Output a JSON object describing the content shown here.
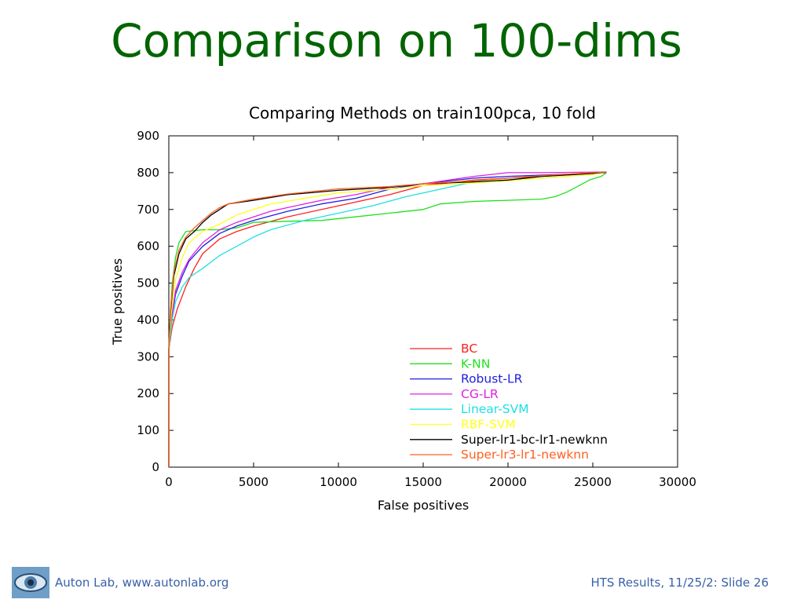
{
  "slide": {
    "title": "Comparison on 100-dims",
    "footer_left": "Auton Lab, www.autonlab.org",
    "footer_right": "HTS Results, 11/25/2: Slide 26",
    "logo_icon": "eye-logo-icon",
    "title_color": "#006400",
    "footer_color": "#3a5fa8"
  },
  "chart_data": {
    "type": "line",
    "title": "Comparing Methods on train100pca, 10 fold",
    "xlabel": "False positives",
    "ylabel": "True positives",
    "xlim": [
      0,
      30000
    ],
    "ylim": [
      0,
      900
    ],
    "xticks": [
      0,
      5000,
      10000,
      15000,
      20000,
      25000,
      30000
    ],
    "yticks": [
      0,
      100,
      200,
      300,
      400,
      500,
      600,
      700,
      800,
      900
    ],
    "legend_position": "bottom-right",
    "series": [
      {
        "name": "BC",
        "color": "#ff2020",
        "points": [
          [
            0,
            0
          ],
          [
            0,
            320
          ],
          [
            200,
            380
          ],
          [
            500,
            430
          ],
          [
            1000,
            490
          ],
          [
            1500,
            540
          ],
          [
            2000,
            580
          ],
          [
            3000,
            620
          ],
          [
            4000,
            640
          ],
          [
            5000,
            655
          ],
          [
            7000,
            680
          ],
          [
            10000,
            710
          ],
          [
            13000,
            740
          ],
          [
            15000,
            765
          ],
          [
            18000,
            780
          ],
          [
            20000,
            785
          ],
          [
            22000,
            790
          ],
          [
            24000,
            795
          ],
          [
            25800,
            800
          ]
        ]
      },
      {
        "name": "K-NN",
        "color": "#20e020",
        "points": [
          [
            0,
            0
          ],
          [
            0,
            330
          ],
          [
            100,
            420
          ],
          [
            200,
            500
          ],
          [
            400,
            570
          ],
          [
            600,
            610
          ],
          [
            1000,
            640
          ],
          [
            2000,
            645
          ],
          [
            3000,
            645
          ],
          [
            4000,
            650
          ],
          [
            5000,
            665
          ],
          [
            7000,
            668
          ],
          [
            9000,
            670
          ],
          [
            11000,
            680
          ],
          [
            13000,
            690
          ],
          [
            15000,
            700
          ],
          [
            16000,
            715
          ],
          [
            18000,
            722
          ],
          [
            20000,
            725
          ],
          [
            22000,
            728
          ],
          [
            22800,
            735
          ],
          [
            23500,
            748
          ],
          [
            24200,
            765
          ],
          [
            24800,
            780
          ],
          [
            25500,
            790
          ],
          [
            25800,
            800
          ]
        ]
      },
      {
        "name": "Robust-LR",
        "color": "#2020e0",
        "points": [
          [
            0,
            0
          ],
          [
            0,
            320
          ],
          [
            150,
            400
          ],
          [
            400,
            470
          ],
          [
            800,
            520
          ],
          [
            1200,
            560
          ],
          [
            2000,
            600
          ],
          [
            3000,
            635
          ],
          [
            4000,
            655
          ],
          [
            5000,
            670
          ],
          [
            7000,
            695
          ],
          [
            9000,
            715
          ],
          [
            11000,
            730
          ],
          [
            13000,
            755
          ],
          [
            15000,
            770
          ],
          [
            18000,
            785
          ],
          [
            20000,
            790
          ],
          [
            23000,
            795
          ],
          [
            25800,
            800
          ]
        ]
      },
      {
        "name": "CG-LR",
        "color": "#e020e0",
        "points": [
          [
            0,
            0
          ],
          [
            0,
            320
          ],
          [
            150,
            400
          ],
          [
            400,
            480
          ],
          [
            800,
            530
          ],
          [
            1200,
            565
          ],
          [
            2000,
            610
          ],
          [
            3000,
            645
          ],
          [
            4000,
            665
          ],
          [
            5000,
            680
          ],
          [
            6000,
            695
          ],
          [
            7000,
            705
          ],
          [
            9000,
            725
          ],
          [
            11000,
            740
          ],
          [
            13000,
            760
          ],
          [
            15000,
            770
          ],
          [
            18000,
            790
          ],
          [
            20000,
            800
          ],
          [
            22000,
            800
          ],
          [
            25800,
            802
          ]
        ]
      },
      {
        "name": "Linear-SVM",
        "color": "#20e0e0",
        "points": [
          [
            0,
            0
          ],
          [
            0,
            320
          ],
          [
            200,
            400
          ],
          [
            400,
            450
          ],
          [
            800,
            490
          ],
          [
            1200,
            515
          ],
          [
            2000,
            540
          ],
          [
            3000,
            575
          ],
          [
            4000,
            600
          ],
          [
            5000,
            625
          ],
          [
            6000,
            645
          ],
          [
            8000,
            670
          ],
          [
            10000,
            690
          ],
          [
            12000,
            710
          ],
          [
            14000,
            735
          ],
          [
            15000,
            745
          ],
          [
            17000,
            765
          ],
          [
            18000,
            775
          ],
          [
            20000,
            780
          ],
          [
            22000,
            785
          ],
          [
            25000,
            795
          ],
          [
            25800,
            802
          ]
        ]
      },
      {
        "name": "RBF-SVM",
        "color": "#ffff20",
        "points": [
          [
            0,
            0
          ],
          [
            0,
            320
          ],
          [
            150,
            420
          ],
          [
            400,
            510
          ],
          [
            800,
            570
          ],
          [
            1200,
            610
          ],
          [
            2000,
            640
          ],
          [
            3000,
            660
          ],
          [
            4000,
            685
          ],
          [
            5000,
            700
          ],
          [
            6000,
            715
          ],
          [
            8000,
            730
          ],
          [
            10000,
            745
          ],
          [
            13000,
            755
          ],
          [
            15000,
            765
          ],
          [
            18000,
            772
          ],
          [
            20000,
            778
          ],
          [
            22000,
            785
          ],
          [
            25000,
            795
          ],
          [
            25800,
            802
          ]
        ]
      },
      {
        "name": "Super-lr1-bc-lr1-newknn",
        "color": "#000000",
        "points": [
          [
            0,
            0
          ],
          [
            0,
            320
          ],
          [
            100,
            420
          ],
          [
            300,
            520
          ],
          [
            600,
            580
          ],
          [
            1000,
            620
          ],
          [
            1500,
            640
          ],
          [
            2000,
            665
          ],
          [
            2500,
            685
          ],
          [
            3000,
            700
          ],
          [
            3500,
            715
          ],
          [
            5000,
            725
          ],
          [
            7000,
            740
          ],
          [
            10000,
            752
          ],
          [
            13000,
            760
          ],
          [
            15000,
            770
          ],
          [
            18000,
            775
          ],
          [
            20000,
            780
          ],
          [
            22000,
            790
          ],
          [
            25000,
            798
          ],
          [
            25800,
            802
          ]
        ]
      },
      {
        "name": "Super-lr3-lr1-newknn",
        "color": "#ff6020",
        "points": [
          [
            0,
            0
          ],
          [
            0,
            320
          ],
          [
            100,
            430
          ],
          [
            300,
            530
          ],
          [
            600,
            590
          ],
          [
            1000,
            625
          ],
          [
            1500,
            650
          ],
          [
            2000,
            670
          ],
          [
            2500,
            690
          ],
          [
            3000,
            705
          ],
          [
            3500,
            715
          ],
          [
            5000,
            728
          ],
          [
            7000,
            742
          ],
          [
            10000,
            756
          ],
          [
            13000,
            762
          ],
          [
            15000,
            770
          ],
          [
            18000,
            778
          ],
          [
            20000,
            785
          ],
          [
            22000,
            792
          ],
          [
            25000,
            800
          ],
          [
            25800,
            802
          ]
        ]
      }
    ]
  }
}
